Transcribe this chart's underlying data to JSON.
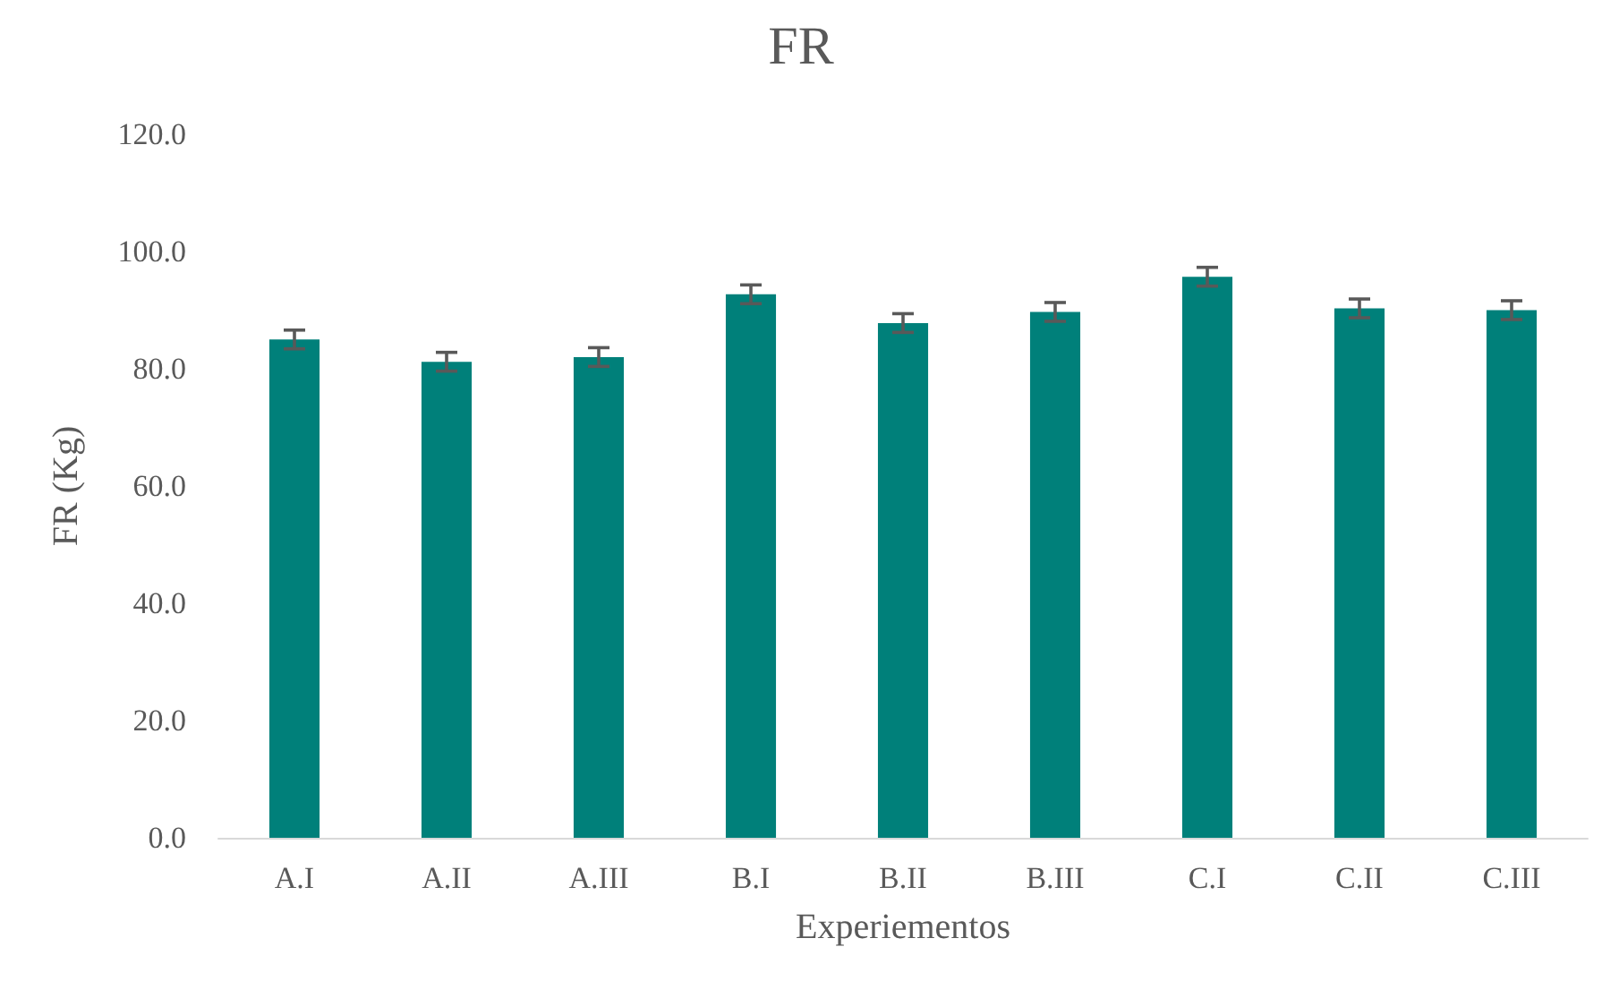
{
  "chart_data": {
    "type": "bar",
    "title": "FR",
    "xlabel": "Experiementos",
    "ylabel": "FR (Kg)",
    "categories": [
      "A.I",
      "A.II",
      "A.III",
      "B.I",
      "B.II",
      "B.III",
      "C.I",
      "C.II",
      "C.III"
    ],
    "values": [
      85.0,
      81.2,
      82.0,
      92.7,
      87.8,
      89.7,
      95.7,
      90.3,
      90.0
    ],
    "errors": [
      1.6,
      1.6,
      1.6,
      1.6,
      1.6,
      1.6,
      1.6,
      1.6,
      1.6
    ],
    "color": "#00807a",
    "ylim": [
      0,
      120
    ],
    "yticks": [
      {
        "value": 0,
        "label": "0.0"
      },
      {
        "value": 20,
        "label": "20.0"
      },
      {
        "value": 40,
        "label": "40.0"
      },
      {
        "value": 60,
        "label": "60.0"
      },
      {
        "value": 80,
        "label": "80.0"
      },
      {
        "value": 100,
        "label": "100.0"
      },
      {
        "value": 120,
        "label": "120.0"
      }
    ],
    "grid": false
  }
}
